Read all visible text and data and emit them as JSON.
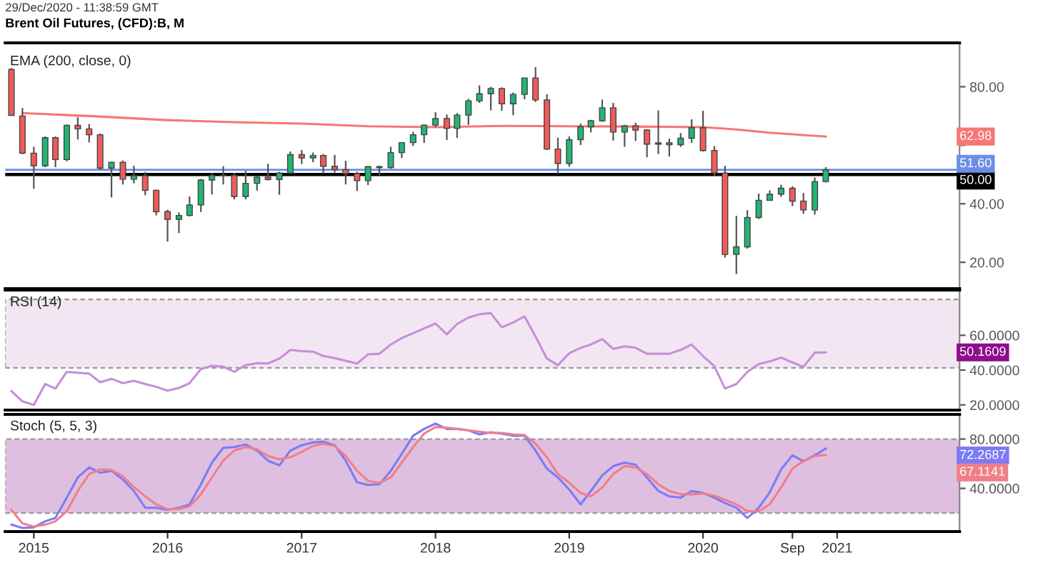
{
  "chart_data": [
    {
      "type": "candlestick",
      "title": "Brent Oil Futures, (CFD):B, M",
      "x": [
        "2014-11",
        "2014-12",
        "2015-01",
        "2015-02",
        "2015-03",
        "2015-04",
        "2015-05",
        "2015-06",
        "2015-07",
        "2015-08",
        "2015-09",
        "2015-10",
        "2015-11",
        "2015-12",
        "2016-01",
        "2016-02",
        "2016-03",
        "2016-04",
        "2016-05",
        "2016-06",
        "2016-07",
        "2016-08",
        "2016-09",
        "2016-10",
        "2016-11",
        "2016-12",
        "2017-01",
        "2017-02",
        "2017-03",
        "2017-04",
        "2017-05",
        "2017-06",
        "2017-07",
        "2017-08",
        "2017-09",
        "2017-10",
        "2017-11",
        "2017-12",
        "2018-01",
        "2018-02",
        "2018-03",
        "2018-04",
        "2018-05",
        "2018-06",
        "2018-07",
        "2018-08",
        "2018-09",
        "2018-10",
        "2018-11",
        "2018-12",
        "2019-01",
        "2019-02",
        "2019-03",
        "2019-04",
        "2019-05",
        "2019-06",
        "2019-07",
        "2019-08",
        "2019-09",
        "2019-10",
        "2019-11",
        "2019-12",
        "2020-01",
        "2020-02",
        "2020-03",
        "2020-04",
        "2020-05",
        "2020-06",
        "2020-07",
        "2020-08",
        "2020-09",
        "2020-10",
        "2020-11",
        "2020-12"
      ],
      "ohlc": [
        [
          85.9,
          86.4,
          70.1,
          70.2
        ],
        [
          70.0,
          72.7,
          56.9,
          57.3
        ],
        [
          57.3,
          59.5,
          45.2,
          53.0
        ],
        [
          53.0,
          63.0,
          52.5,
          62.6
        ],
        [
          62.6,
          63.0,
          52.5,
          55.1
        ],
        [
          55.1,
          67.1,
          54.5,
          66.8
        ],
        [
          66.8,
          69.6,
          62.0,
          65.6
        ],
        [
          65.6,
          67.3,
          61.0,
          63.6
        ],
        [
          63.6,
          64.0,
          51.6,
          52.2
        ],
        [
          52.2,
          54.4,
          42.2,
          54.2
        ],
        [
          54.2,
          54.8,
          46.6,
          48.4
        ],
        [
          48.4,
          53.0,
          47.0,
          49.6
        ],
        [
          49.6,
          50.9,
          42.9,
          44.6
        ],
        [
          44.6,
          44.8,
          36.0,
          37.3
        ],
        [
          37.3,
          38.0,
          27.1,
          34.7
        ],
        [
          34.7,
          37.0,
          30.0,
          36.0
        ],
        [
          36.0,
          42.5,
          35.7,
          39.6
        ],
        [
          39.6,
          48.5,
          37.2,
          48.1
        ],
        [
          48.1,
          50.5,
          43.2,
          49.7
        ],
        [
          49.7,
          52.9,
          46.6,
          49.68
        ],
        [
          49.7,
          50.5,
          41.5,
          42.5
        ],
        [
          42.5,
          51.2,
          41.5,
          47.0
        ],
        [
          47.0,
          49.4,
          44.5,
          49.1
        ],
        [
          49.1,
          53.7,
          48.0,
          48.3
        ],
        [
          48.3,
          50.9,
          43.1,
          50.5
        ],
        [
          50.5,
          57.9,
          50.3,
          56.8
        ],
        [
          56.8,
          58.4,
          53.6,
          55.7
        ],
        [
          55.7,
          57.5,
          54.2,
          56.5
        ],
        [
          56.5,
          57.0,
          50.3,
          52.8
        ],
        [
          52.8,
          56.7,
          50.7,
          51.7
        ],
        [
          51.7,
          54.7,
          46.6,
          50.3
        ],
        [
          50.3,
          51.0,
          44.4,
          47.9
        ],
        [
          47.9,
          52.9,
          46.4,
          52.7
        ],
        [
          52.7,
          53.0,
          49.7,
          52.4
        ],
        [
          52.4,
          59.5,
          52.0,
          57.5
        ],
        [
          57.5,
          61.0,
          55.6,
          60.9
        ],
        [
          60.9,
          64.6,
          59.8,
          63.6
        ],
        [
          63.6,
          67.1,
          60.8,
          66.9
        ],
        [
          66.9,
          71.3,
          66.1,
          69.1
        ],
        [
          69.1,
          70.5,
          61.8,
          65.8
        ],
        [
          65.8,
          71.0,
          62.5,
          70.3
        ],
        [
          70.3,
          75.9,
          67.0,
          75.2
        ],
        [
          75.2,
          80.5,
          74.5,
          77.6
        ],
        [
          77.6,
          80.0,
          71.9,
          79.4
        ],
        [
          79.4,
          79.8,
          71.8,
          74.2
        ],
        [
          74.2,
          78.0,
          70.3,
          77.4
        ],
        [
          77.4,
          83.1,
          75.7,
          83.0
        ],
        [
          83.0,
          86.7,
          74.8,
          75.5
        ],
        [
          75.5,
          77.4,
          58.4,
          58.7
        ],
        [
          58.7,
          62.6,
          50.2,
          53.8
        ],
        [
          53.8,
          63.0,
          52.7,
          61.9
        ],
        [
          61.9,
          67.4,
          60.1,
          66.3
        ],
        [
          66.3,
          68.7,
          64.4,
          68.4
        ],
        [
          68.4,
          75.6,
          68.0,
          72.8
        ],
        [
          72.8,
          74.5,
          61.6,
          64.5
        ],
        [
          64.5,
          67.0,
          59.5,
          66.6
        ],
        [
          66.6,
          67.7,
          61.5,
          65.2
        ],
        [
          65.2,
          65.4,
          55.9,
          60.4
        ],
        [
          60.4,
          71.9,
          57.0,
          60.8
        ],
        [
          60.8,
          62.3,
          56.2,
          60.2
        ],
        [
          60.2,
          64.2,
          59.5,
          62.4
        ],
        [
          62.4,
          68.9,
          60.8,
          66.0
        ],
        [
          66.0,
          71.8,
          57.9,
          58.2
        ],
        [
          58.2,
          59.7,
          49.5,
          50.5
        ],
        [
          50.5,
          53.0,
          21.6,
          22.7
        ],
        [
          22.7,
          35.9,
          16.0,
          25.3
        ],
        [
          25.3,
          37.8,
          24.7,
          35.3
        ],
        [
          35.3,
          43.5,
          34.8,
          41.2
        ],
        [
          41.2,
          44.6,
          41.0,
          43.3
        ],
        [
          43.3,
          46.5,
          42.4,
          45.3
        ],
        [
          45.3,
          46.0,
          39.2,
          40.9
        ],
        [
          40.9,
          43.7,
          36.6,
          37.9
        ],
        [
          37.9,
          49.0,
          36.3,
          47.6
        ],
        [
          47.6,
          52.5,
          47.3,
          51.6
        ]
      ],
      "colors": [
        "#f25b5b",
        "#f25b5b",
        "#f25b5b",
        "#22b573",
        "#f25b5b",
        "#22b573",
        "#f25b5b",
        "#f25b5b",
        "#f25b5b",
        "#22b573",
        "#f25b5b",
        "#22b573",
        "#f25b5b",
        "#f25b5b",
        "#f25b5b",
        "#22b573",
        "#22b573",
        "#22b573",
        "#22b573",
        "#f25b5b",
        "#f25b5b",
        "#22b573",
        "#22b573",
        "#f25b5b",
        "#22b573",
        "#22b573",
        "#f25b5b",
        "#22b573",
        "#f25b5b",
        "#f25b5b",
        "#f25b5b",
        "#f25b5b",
        "#22b573",
        "#f25b5b",
        "#22b573",
        "#22b573",
        "#22b573",
        "#22b573",
        "#22b573",
        "#f25b5b",
        "#22b573",
        "#22b573",
        "#22b573",
        "#22b573",
        "#f25b5b",
        "#22b573",
        "#22b573",
        "#f25b5b",
        "#f25b5b",
        "#f25b5b",
        "#22b573",
        "#22b573",
        "#22b573",
        "#22b573",
        "#f25b5b",
        "#22b573",
        "#f25b5b",
        "#f25b5b",
        "#22b573",
        "#f25b5b",
        "#22b573",
        "#22b573",
        "#f25b5b",
        "#f25b5b",
        "#f25b5b",
        "#22b573",
        "#22b573",
        "#22b573",
        "#22b573",
        "#22b573",
        "#f25b5b",
        "#f25b5b",
        "#22b573",
        "#22b573"
      ],
      "series": [
        {
          "type": "line",
          "color": "#f77676",
          "x": [
            "2014-12",
            "2015-06",
            "2016-01",
            "2016-07",
            "2017-01",
            "2017-07",
            "2018-01",
            "2018-07",
            "2019-01",
            "2019-07",
            "2020-01",
            "2020-04",
            "2020-07",
            "2020-12"
          ],
          "values": [
            71.0,
            70.0,
            68.6,
            67.9,
            67.4,
            66.5,
            66.2,
            66.6,
            66.5,
            66.4,
            66.2,
            65.4,
            64.3,
            62.98
          ]
        }
      ],
      "xlim": [
        "2014-10-15",
        "2021-12-01"
      ],
      "ylim": [
        11,
        95
      ],
      "yticks": [
        {
          "value": 20,
          "label": "20.00"
        },
        {
          "value": 40,
          "label": "40.00"
        },
        {
          "value": 60,
          "label": null
        },
        {
          "value": 80,
          "label": "80.00"
        }
      ],
      "ref_lines": [
        {
          "axis": "y",
          "value": 50,
          "label": "50.00",
          "color": "#000000"
        },
        {
          "axis": "y",
          "value": 51.6,
          "label": "51.60",
          "color": "#6b8fe6"
        }
      ],
      "annotations": [
        "29/Dec/2020 - 11:38:59 GMT",
        "EMA (200, close, 0)",
        "62.98"
      ],
      "tick_labels": "y",
      "grid": false
    },
    {
      "type": "line",
      "x": [
        "2014-11",
        "2014-12",
        "2015-01",
        "2015-02",
        "2015-03",
        "2015-04",
        "2015-05",
        "2015-06",
        "2015-07",
        "2015-08",
        "2015-09",
        "2015-10",
        "2015-11",
        "2015-12",
        "2016-01",
        "2016-02",
        "2016-03",
        "2016-04",
        "2016-05",
        "2016-06",
        "2016-07",
        "2016-08",
        "2016-09",
        "2016-10",
        "2016-11",
        "2016-12",
        "2017-01",
        "2017-02",
        "2017-03",
        "2017-04",
        "2017-05",
        "2017-06",
        "2017-07",
        "2017-08",
        "2017-09",
        "2017-10",
        "2017-11",
        "2017-12",
        "2018-01",
        "2018-02",
        "2018-03",
        "2018-04",
        "2018-05",
        "2018-06",
        "2018-07",
        "2018-08",
        "2018-09",
        "2018-10",
        "2018-11",
        "2018-12",
        "2019-01",
        "2019-02",
        "2019-03",
        "2019-04",
        "2019-05",
        "2019-06",
        "2019-07",
        "2019-08",
        "2019-09",
        "2019-10",
        "2019-11",
        "2019-12",
        "2020-01",
        "2020-02",
        "2020-03",
        "2020-04",
        "2020-05",
        "2020-06",
        "2020-07",
        "2020-08",
        "2020-09",
        "2020-10",
        "2020-11",
        "2020-12"
      ],
      "series": [
        {
          "color": "#c58fd6",
          "values": [
            27.9,
            22,
            20,
            32,
            29.4,
            39,
            38.5,
            38,
            33,
            35,
            32.5,
            33.8,
            32,
            30.4,
            28.2,
            29.7,
            32.5,
            40.6,
            42.5,
            42,
            39,
            42.8,
            44,
            43.8,
            46.6,
            51.6,
            50.9,
            50.6,
            48.1,
            46.9,
            45.3,
            43.8,
            49,
            49.4,
            54.7,
            58.4,
            61.2,
            64,
            66.8,
            60.6,
            66.5,
            70.2,
            72.1,
            72.7,
            64.6,
            67.4,
            70.9,
            59.3,
            46.6,
            42.8,
            49.7,
            52.8,
            54.7,
            57.8,
            52.2,
            53.7,
            52.8,
            49.4,
            49.4,
            49.4,
            51.6,
            54.7,
            48.1,
            42.2,
            29.4,
            32,
            39,
            43.5,
            45,
            47.2,
            44.4,
            41.9,
            50,
            50.16
          ]
        }
      ],
      "xlim": [
        "2014-10-15",
        "2021-12-01"
      ],
      "ylim": [
        17,
        86
      ],
      "yticks": [
        {
          "value": 20,
          "label": "20.0000"
        },
        {
          "value": 40,
          "label": "40.0000"
        },
        {
          "value": 60,
          "label": "60.0000"
        }
      ],
      "bands": [
        {
          "axis": "y",
          "from": 41.3,
          "to": 80.6,
          "color": "#f3e6f3"
        }
      ],
      "annotations": [
        "RSI (14)",
        "50.1609"
      ],
      "tick_labels": "y",
      "grid": false
    },
    {
      "type": "line",
      "x": [
        "2014-11",
        "2014-12",
        "2015-01",
        "2015-02",
        "2015-03",
        "2015-04",
        "2015-05",
        "2015-06",
        "2015-07",
        "2015-08",
        "2015-09",
        "2015-10",
        "2015-11",
        "2015-12",
        "2016-01",
        "2016-02",
        "2016-03",
        "2016-04",
        "2016-05",
        "2016-06",
        "2016-07",
        "2016-08",
        "2016-09",
        "2016-10",
        "2016-11",
        "2016-12",
        "2017-01",
        "2017-02",
        "2017-03",
        "2017-04",
        "2017-05",
        "2017-06",
        "2017-07",
        "2017-08",
        "2017-09",
        "2017-10",
        "2017-11",
        "2017-12",
        "2018-01",
        "2018-02",
        "2018-03",
        "2018-04",
        "2018-05",
        "2018-06",
        "2018-07",
        "2018-08",
        "2018-09",
        "2018-10",
        "2018-11",
        "2018-12",
        "2019-01",
        "2019-02",
        "2019-03",
        "2019-04",
        "2019-05",
        "2019-06",
        "2019-07",
        "2019-08",
        "2019-09",
        "2019-10",
        "2019-11",
        "2019-12",
        "2020-01",
        "2020-02",
        "2020-03",
        "2020-04",
        "2020-05",
        "2020-06",
        "2020-07",
        "2020-08",
        "2020-09",
        "2020-10",
        "2020-11",
        "2020-12"
      ],
      "series": [
        {
          "color": "#7b7bf5",
          "values": [
            10.6,
            7.9,
            8.4,
            13.3,
            16,
            32.5,
            48.9,
            57,
            52.7,
            54.3,
            47.2,
            37.9,
            24.3,
            24.3,
            22.6,
            24.3,
            27,
            43.4,
            60.9,
            72.9,
            73.5,
            75.6,
            70.7,
            62.5,
            58.7,
            70.7,
            75,
            77.3,
            77.8,
            75,
            62.5,
            45,
            42.8,
            43.4,
            54.3,
            68,
            82.7,
            88.2,
            92.6,
            88.2,
            88.2,
            87.1,
            83.8,
            85.5,
            84.4,
            82.7,
            82.7,
            70.7,
            56,
            48.9,
            39,
            27,
            37.9,
            50.5,
            58.1,
            60.9,
            59.2,
            48.9,
            37.9,
            33.5,
            32.5,
            37.9,
            36.3,
            32.5,
            28.1,
            24.3,
            16,
            24.3,
            36.8,
            55.4,
            66.9,
            62,
            66.9,
            72.27
          ]
        },
        {
          "color": "#f07f8a",
          "values": [
            22.6,
            11.7,
            9,
            10.6,
            13.3,
            21.5,
            37.9,
            51.6,
            55.4,
            54.9,
            49.9,
            41.2,
            33.5,
            27,
            23.2,
            23.2,
            25.4,
            35.2,
            48.9,
            62.5,
            70.7,
            73.5,
            71.8,
            66.3,
            63.6,
            65.2,
            69.6,
            74.5,
            76.2,
            74.5,
            66.3,
            54.3,
            46.1,
            44.5,
            48.9,
            60.9,
            73.5,
            84.4,
            89.8,
            89.3,
            88.2,
            87.1,
            86,
            84.9,
            84.9,
            83.8,
            83.3,
            76.2,
            65.2,
            51.6,
            44.5,
            36.3,
            33.5,
            40.7,
            51.6,
            58.1,
            57,
            51.6,
            43.4,
            37.9,
            35.2,
            35.2,
            35.8,
            34.1,
            30.8,
            27,
            21.5,
            21.5,
            27,
            40.7,
            56,
            62,
            66.3,
            67.11
          ]
        }
      ],
      "xlim": [
        "2014-10-15",
        "2021-12-01"
      ],
      "ylim": [
        5,
        100
      ],
      "yticks": [
        {
          "value": 40,
          "label": "40.0000"
        },
        {
          "value": 80,
          "label": "80.0000"
        }
      ],
      "xticks": [
        {
          "value": "2015-01",
          "label": "2015"
        },
        {
          "value": "2016-01",
          "label": "2016"
        },
        {
          "value": "2017-01",
          "label": "2017"
        },
        {
          "value": "2018-01",
          "label": "2018"
        },
        {
          "value": "2019-01",
          "label": "2019"
        },
        {
          "value": "2020-01",
          "label": "2020"
        },
        {
          "value": "2020-09",
          "label": "Sep"
        },
        {
          "value": "2021-01",
          "label": "2021"
        }
      ],
      "bands": [
        {
          "axis": "y",
          "from": 20,
          "to": 80,
          "color": "#dfbfdf"
        }
      ],
      "annotations": [
        "Stoch (5, 5, 3)",
        "72.2687",
        "67.1141"
      ],
      "grid": false
    }
  ]
}
